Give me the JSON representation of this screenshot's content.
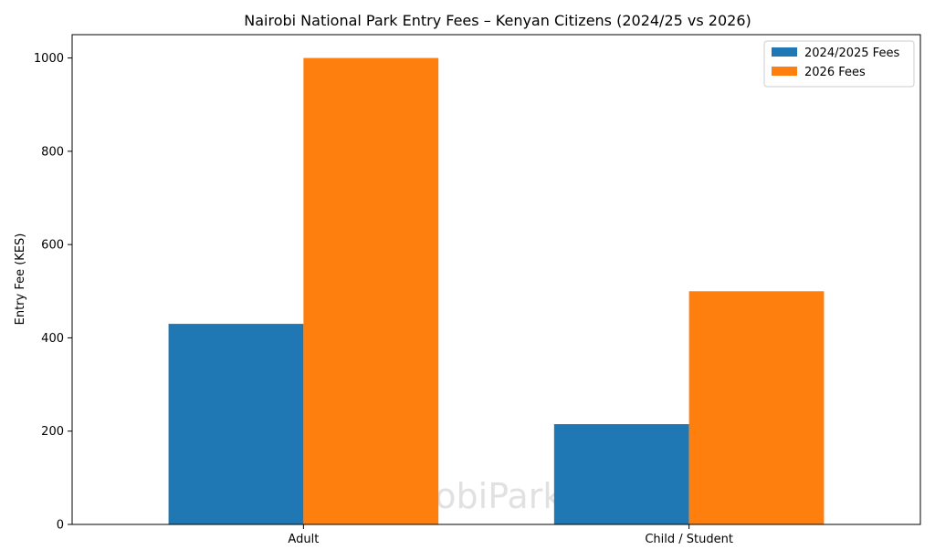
{
  "chart_data": {
    "type": "bar",
    "title": "Nairobi National Park Entry Fees – Kenyan Citizens (2024/25 vs 2026)",
    "xlabel": "",
    "ylabel": "Entry Fee (KES)",
    "categories": [
      "Adult",
      "Child / Student"
    ],
    "series": [
      {
        "name": "2024/2025 Fees",
        "values": [
          430,
          215
        ],
        "color": "#1f77b4"
      },
      {
        "name": "2026 Fees",
        "values": [
          1000,
          500
        ],
        "color": "#ff7f0e"
      }
    ],
    "ylim": [
      0,
      1050
    ],
    "yticks": [
      0,
      200,
      400,
      600,
      800,
      1000
    ],
    "grid": false,
    "legend_position": "top-right",
    "watermark": "NairobiPark.org"
  }
}
